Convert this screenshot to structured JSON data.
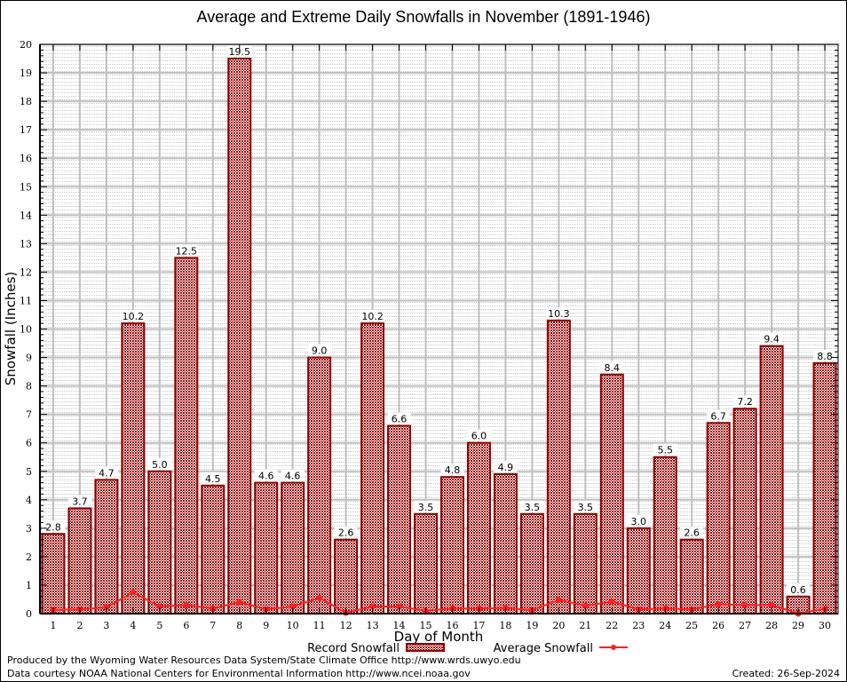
{
  "footer": {
    "produced_by": "Produced by the Wyoming Water Resources Data System/State Climate Office http://www.wrds.uwyo.edu",
    "data_courtesy": "Data courtesy NOAA National Centers for Environmental Information http://www.ncei.noaa.gov",
    "created": "Created: 26-Sep-2024"
  },
  "colors": {
    "bar_fill": "#a00000",
    "bar_border": "#8b0000",
    "line": "#ff2020",
    "grid": "#c0c0c0"
  },
  "chart_data": {
    "type": "bar",
    "title": "Average and Extreme Daily Snowfalls in November (1891-1946)",
    "xlabel": "Day of Month",
    "ylabel": "Snowfall (Inches)",
    "ylim": [
      0,
      20
    ],
    "yticks": [
      "0",
      "1",
      "2",
      "3",
      "4",
      "5",
      "6",
      "7",
      "8",
      "9",
      "10",
      "11",
      "12",
      "13",
      "14",
      "15",
      "16",
      "17",
      "18",
      "19",
      "20"
    ],
    "categories": [
      "1",
      "2",
      "3",
      "4",
      "5",
      "6",
      "7",
      "8",
      "9",
      "10",
      "11",
      "12",
      "13",
      "14",
      "15",
      "16",
      "17",
      "18",
      "19",
      "20",
      "21",
      "22",
      "23",
      "24",
      "25",
      "26",
      "27",
      "28",
      "29",
      "30"
    ],
    "grid": true,
    "legend_position": "bottom-center",
    "series": [
      {
        "name": "Record Snowfall",
        "type": "bar",
        "values": [
          2.8,
          3.7,
          4.7,
          10.2,
          5.0,
          12.5,
          4.5,
          19.5,
          4.6,
          4.6,
          9.0,
          2.6,
          10.2,
          6.6,
          3.5,
          4.8,
          6.0,
          4.9,
          3.5,
          10.3,
          3.5,
          8.4,
          3.0,
          5.5,
          2.6,
          6.7,
          7.2,
          9.4,
          0.6,
          8.8
        ],
        "labels": [
          "2.8",
          "3.7",
          "4.7",
          "10.2",
          "5.0",
          "12.5",
          "4.5",
          "19.5",
          "4.6",
          "4.6",
          "9.0",
          "2.6",
          "10.2",
          "6.6",
          "3.5",
          "4.8",
          "6.0",
          "4.9",
          "3.5",
          "10.3",
          "3.5",
          "8.4",
          "3.0",
          "5.5",
          "2.6",
          "6.7",
          "7.2",
          "9.4",
          "0.6",
          "8.8"
        ]
      },
      {
        "name": "Average Snowfall",
        "type": "line",
        "values": [
          0.13,
          0.15,
          0.22,
          0.75,
          0.25,
          0.3,
          0.18,
          0.4,
          0.15,
          0.25,
          0.55,
          0.03,
          0.25,
          0.25,
          0.1,
          0.18,
          0.18,
          0.2,
          0.12,
          0.48,
          0.28,
          0.42,
          0.15,
          0.18,
          0.15,
          0.33,
          0.3,
          0.3,
          0.0,
          0.17
        ]
      }
    ]
  }
}
